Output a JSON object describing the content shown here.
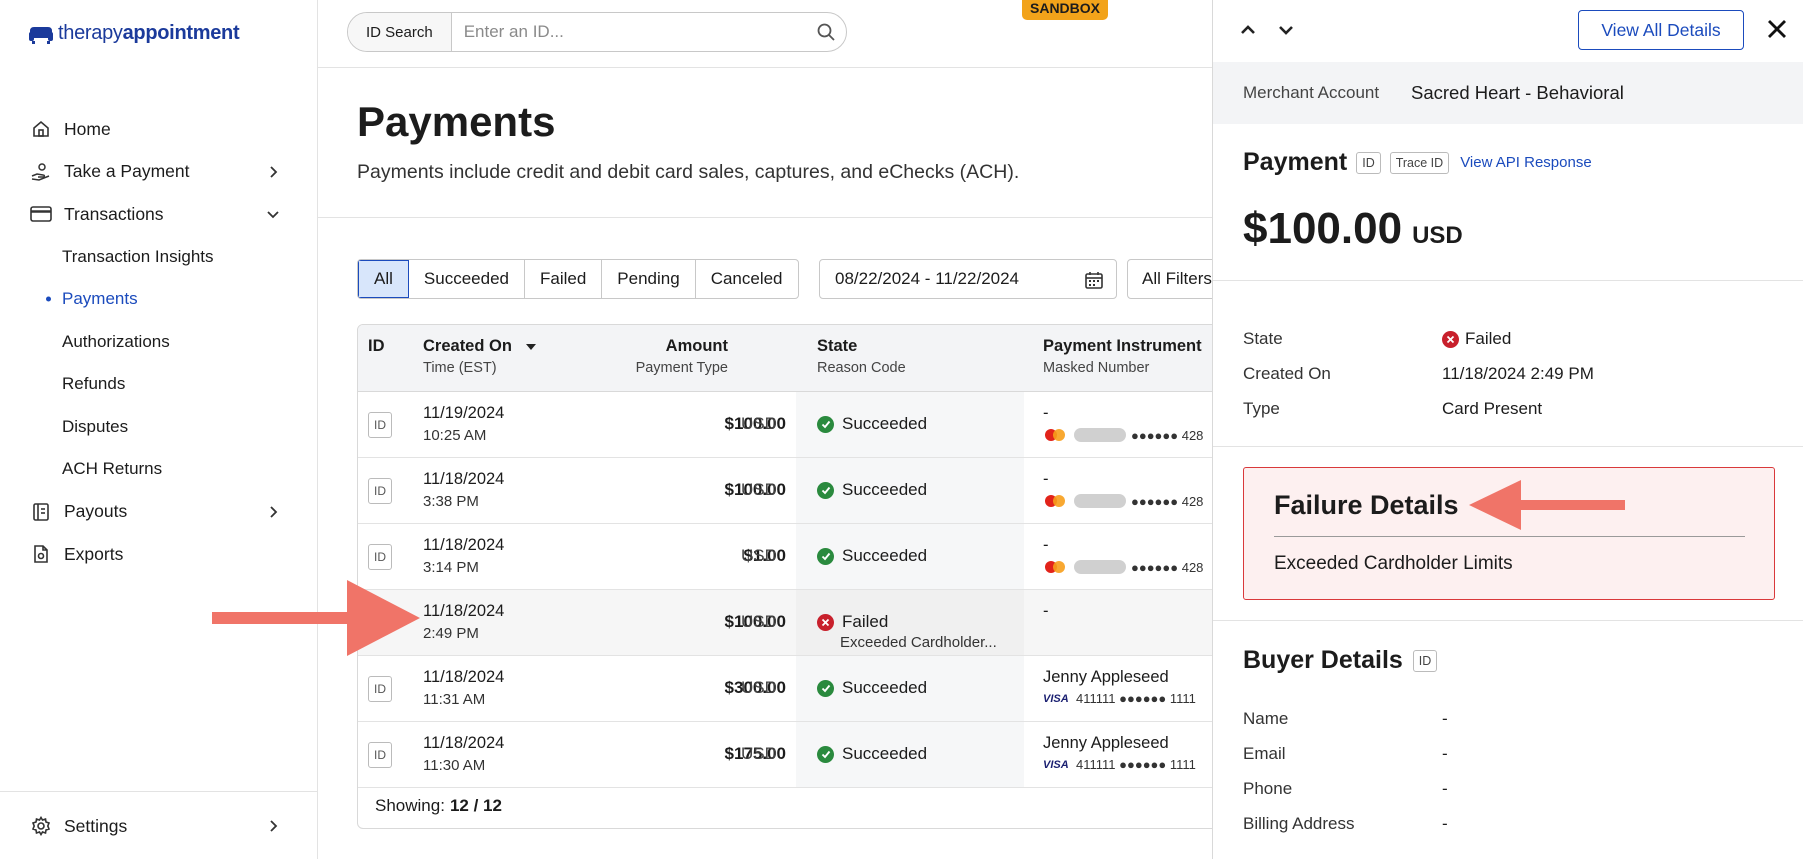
{
  "logo": {
    "text_light": "therapy",
    "text_bold": "appointment"
  },
  "sidebar": {
    "items": [
      {
        "label": "Home",
        "icon": "home-icon"
      },
      {
        "label": "Take a Payment",
        "icon": "hand-payment-icon"
      },
      {
        "label": "Transactions",
        "icon": "credit-card-icon"
      }
    ],
    "sub_items": [
      {
        "label": "Transaction Insights",
        "active": false
      },
      {
        "label": "Payments",
        "active": true
      },
      {
        "label": "Authorizations",
        "active": false
      },
      {
        "label": "Refunds",
        "active": false
      },
      {
        "label": "Disputes",
        "active": false
      },
      {
        "label": "ACH Returns",
        "active": false
      }
    ],
    "lower_items": [
      {
        "label": "Payouts",
        "icon": "ledger-icon"
      },
      {
        "label": "Exports",
        "icon": "file-export-icon"
      }
    ],
    "settings": {
      "label": "Settings",
      "icon": "gear-icon"
    }
  },
  "topbar": {
    "search_pill": "ID Search",
    "search_placeholder": "Enter an ID...",
    "sandbox": "SANDBOX"
  },
  "main": {
    "title": "Payments",
    "subtitle": "Payments include credit and debit card sales, captures, and eChecks (ACH).",
    "filters": [
      "All",
      "Succeeded",
      "Failed",
      "Pending",
      "Canceled"
    ],
    "active_filter": "All",
    "date_range": "08/22/2024 - 11/22/2024",
    "all_filters": "All Filters"
  },
  "table": {
    "headers": {
      "id": "ID",
      "created": "Created On",
      "created_sub": "Time (EST)",
      "amount": "Amount",
      "amount_sub": "Payment Type",
      "state": "State",
      "state_sub": "Reason Code",
      "instrument": "Payment Instrument",
      "instrument_sub": "Masked Number"
    },
    "id_tag": "ID",
    "rows": [
      {
        "date": "11/19/2024",
        "time": "10:25 AM",
        "amount": "$100.00",
        "currency": "USD",
        "state": "Succeeded",
        "reason": "",
        "holder": "-",
        "brand": "mastercard",
        "masked": "●●●●●● 428"
      },
      {
        "date": "11/18/2024",
        "time": "3:38 PM",
        "amount": "$100.00",
        "currency": "USD",
        "state": "Succeeded",
        "reason": "",
        "holder": "-",
        "brand": "mastercard",
        "masked": "●●●●●● 428"
      },
      {
        "date": "11/18/2024",
        "time": "3:14 PM",
        "amount": "$1.00",
        "currency": "USD",
        "state": "Succeeded",
        "reason": "",
        "holder": "-",
        "brand": "mastercard",
        "masked": "●●●●●● 428"
      },
      {
        "date": "11/18/2024",
        "time": "2:49 PM",
        "amount": "$100.00",
        "currency": "USD",
        "state": "Failed",
        "reason": "Exceeded Cardholder...",
        "holder": "-",
        "brand": "",
        "masked": ""
      },
      {
        "date": "11/18/2024",
        "time": "11:31 AM",
        "amount": "$300.00",
        "currency": "USD",
        "state": "Succeeded",
        "reason": "",
        "holder": "Jenny Appleseed",
        "brand": "visa",
        "masked": "411111 ●●●●●● 1111"
      },
      {
        "date": "11/18/2024",
        "time": "11:30 AM",
        "amount": "$175.00",
        "currency": "USD",
        "state": "Succeeded",
        "reason": "",
        "holder": "Jenny Appleseed",
        "brand": "visa",
        "masked": "411111 ●●●●●● 1111"
      }
    ],
    "showing_label": "Showing:",
    "showing_value": "12 / 12",
    "visa_label": "VISA"
  },
  "panel": {
    "view_all": "View All Details",
    "merchant_label": "Merchant Account",
    "merchant_value": "Sacred Heart - Behavioral",
    "title": "Payment",
    "id_tag": "ID",
    "trace_tag": "Trace ID",
    "api_link": "View API Response",
    "amount": "$100.00",
    "currency": "USD",
    "state_label": "State",
    "state_value": "Failed",
    "created_label": "Created On",
    "created_value": "11/18/2024 2:49 PM",
    "type_label": "Type",
    "type_value": "Card Present",
    "failure_title": "Failure Details",
    "failure_message": "Exceeded Cardholder Limits",
    "buyer_title": "Buyer Details",
    "buyer_id_tag": "ID",
    "buyer_fields": [
      {
        "label": "Name",
        "value": "-"
      },
      {
        "label": "Email",
        "value": "-"
      },
      {
        "label": "Phone",
        "value": "-"
      },
      {
        "label": "Billing Address",
        "value": "-"
      }
    ]
  },
  "colors": {
    "brand": "#1b3a9b",
    "link": "#1b4bbd",
    "success": "#2a8a3e",
    "failure": "#c8202c",
    "annotation_arrow": "#f07468",
    "sandbox": "#f2a31a"
  }
}
